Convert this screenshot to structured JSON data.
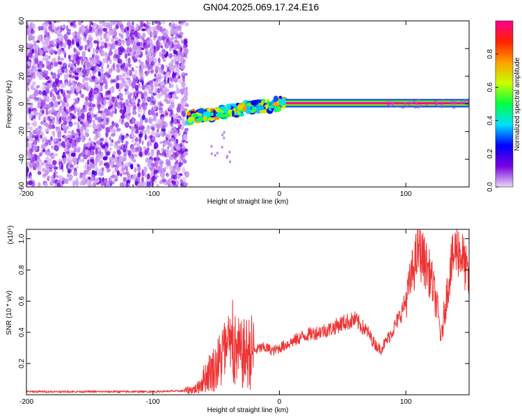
{
  "figure": {
    "title": "GN04.2025.069.17.24.E16"
  },
  "chart_data": [
    {
      "type": "heatmap",
      "xlabel": "Height of straight line (km)",
      "ylabel": "Frequency (Hz)",
      "xlim": [
        -200,
        150
      ],
      "ylim": [
        -60,
        60
      ],
      "xticks": [
        -200,
        -100,
        0,
        100
      ],
      "yticks": [
        -60,
        -40,
        -20,
        0,
        20,
        40,
        60
      ],
      "grid": false,
      "colorbar": {
        "label": "Normalized spectral amplitude",
        "range": [
          0,
          1
        ],
        "ticks": [
          "0.0",
          "0.2",
          "0.4",
          "0.6",
          "0.8"
        ],
        "colors": [
          "#e8d8f8",
          "#7a00e0",
          "#0000ff",
          "#00e0ff",
          "#00ff40",
          "#c8ff00",
          "#ffa000",
          "#ff2000",
          "#ff0090"
        ]
      },
      "regions": [
        {
          "x_range": [
            -200,
            -73
          ],
          "freq_range": [
            -60,
            60
          ],
          "amplitude_range": [
            0.02,
            0.15
          ]
        },
        {
          "x_range": [
            -73,
            5
          ],
          "freq_range": [
            -15,
            8
          ],
          "amplitude_range": [
            0.2,
            0.8
          ]
        },
        {
          "x_range": [
            5,
            150
          ],
          "freq_range": [
            0,
            1
          ],
          "amplitude": 1.0
        }
      ]
    },
    {
      "type": "line",
      "ylabel": "SNR (10 * v/v)",
      "y_multiplier": "(x10⁴)",
      "xlabel": "Height of straight line (km)",
      "xlim": [
        -200,
        150
      ],
      "ylim": [
        0,
        1.06
      ],
      "xticks": [
        -200,
        -100,
        0,
        100
      ],
      "yticks": [
        0.2,
        0.4,
        0.6,
        0.8,
        1.0
      ],
      "grid": false,
      "color": "#ee3333",
      "series": [
        {
          "x": [
            -200,
            -150,
            -100,
            -75,
            -65,
            -60,
            -55,
            -50,
            -45,
            -40,
            -35,
            -30,
            -25,
            -20,
            -15,
            -10,
            -5,
            0,
            10,
            20,
            30,
            40,
            50,
            60,
            70,
            75,
            80,
            85,
            90,
            95,
            100,
            105,
            110,
            115,
            120,
            125,
            128,
            130,
            135,
            140,
            145,
            150
          ],
          "y": [
            0.02,
            0.02,
            0.02,
            0.025,
            0.04,
            0.1,
            0.15,
            0.18,
            0.25,
            0.28,
            0.28,
            0.25,
            0.27,
            0.28,
            0.3,
            0.3,
            0.28,
            0.3,
            0.34,
            0.38,
            0.4,
            0.42,
            0.46,
            0.48,
            0.4,
            0.33,
            0.29,
            0.35,
            0.42,
            0.5,
            0.6,
            0.78,
            0.93,
            0.85,
            0.75,
            0.55,
            0.35,
            0.5,
            0.8,
            0.95,
            0.88,
            0.72
          ]
        }
      ]
    }
  ]
}
